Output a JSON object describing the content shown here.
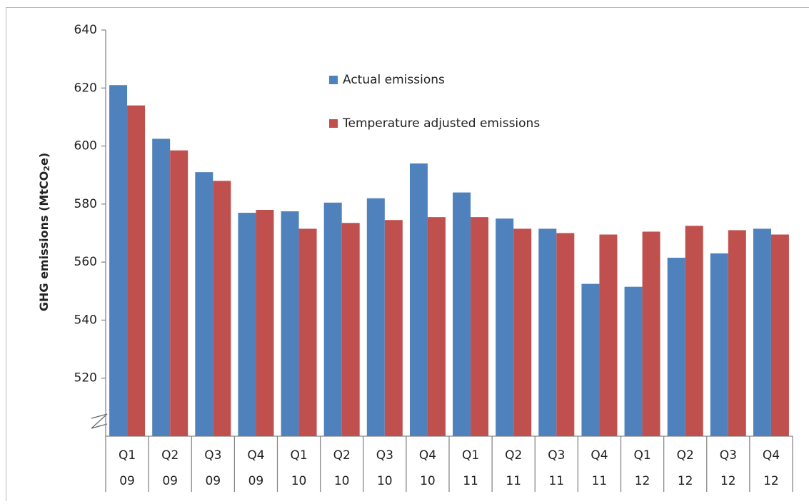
{
  "chart_data": {
    "type": "bar",
    "y_label": [
      "GHG emissions (MtCO",
      "2",
      "e)"
    ],
    "categories": [
      [
        "Q1",
        "09"
      ],
      [
        "Q2",
        "09"
      ],
      [
        "Q3",
        "09"
      ],
      [
        "Q4",
        "09"
      ],
      [
        "Q1",
        "10"
      ],
      [
        "Q2",
        "10"
      ],
      [
        "Q3",
        "10"
      ],
      [
        "Q4",
        "10"
      ],
      [
        "Q1",
        "11"
      ],
      [
        "Q2",
        "11"
      ],
      [
        "Q3",
        "11"
      ],
      [
        "Q4",
        "11"
      ],
      [
        "Q1",
        "12"
      ],
      [
        "Q2",
        "12"
      ],
      [
        "Q3",
        "12"
      ],
      [
        "Q4",
        "12"
      ]
    ],
    "series": [
      {
        "name": "Actual emissions",
        "color": "#4f81bd",
        "values": [
          621,
          602.5,
          591,
          577,
          577.5,
          580.5,
          582,
          594,
          584,
          575,
          571.5,
          552.5,
          551.5,
          561.5,
          563,
          571.5
        ]
      },
      {
        "name": "Temperature adjusted emissions",
        "color": "#c0504d",
        "values": [
          614,
          598.5,
          588,
          578,
          571.5,
          573.5,
          574.5,
          575.5,
          575.5,
          571.5,
          570,
          569.5,
          570.5,
          572.5,
          571,
          569.5
        ]
      }
    ],
    "ylim": [
      500,
      640
    ],
    "yticks": [
      520,
      540,
      560,
      580,
      600,
      620,
      640
    ],
    "grid": false
  }
}
